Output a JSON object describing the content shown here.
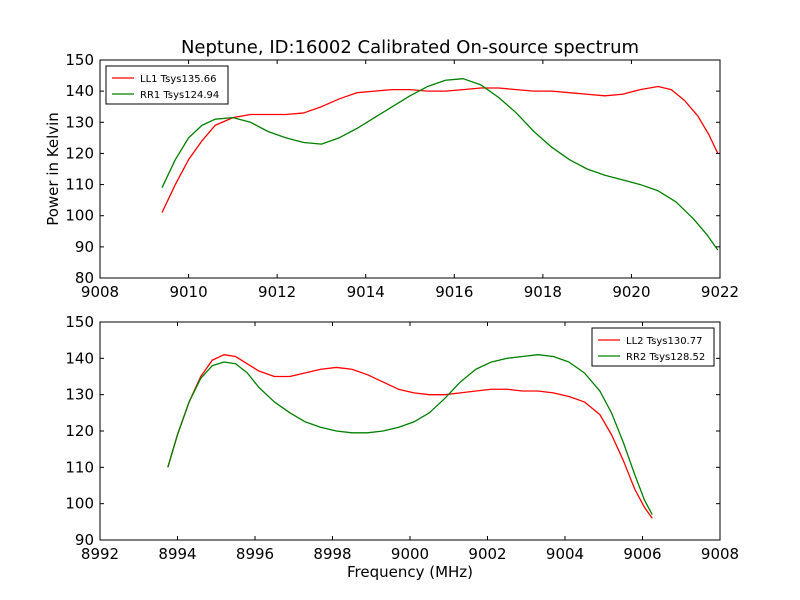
{
  "figure": {
    "title": "Neptune, ID:16002 Calibrated On-source spectrum",
    "ylabel": "Power in Kelvin",
    "xlabel": "Frequency (MHz)"
  },
  "chart_data": [
    {
      "type": "line",
      "xlim": [
        9008,
        9022
      ],
      "ylim": [
        80,
        150
      ],
      "xticks": [
        9008,
        9010,
        9012,
        9014,
        9016,
        9018,
        9020,
        9022
      ],
      "yticks": [
        80,
        90,
        100,
        110,
        120,
        130,
        140,
        150
      ],
      "legend_position": "top-left",
      "series": [
        {
          "name": "LL1 Tsys135.66",
          "color": "#ff0000",
          "x": [
            9009.4,
            9009.7,
            9010.0,
            9010.3,
            9010.6,
            9011.0,
            9011.4,
            9011.8,
            9012.2,
            9012.6,
            9013.0,
            9013.4,
            9013.8,
            9014.2,
            9014.6,
            9015.0,
            9015.4,
            9015.8,
            9016.2,
            9016.6,
            9017.0,
            9017.4,
            9017.8,
            9018.2,
            9018.6,
            9019.0,
            9019.4,
            9019.8,
            9020.2,
            9020.6,
            9020.9,
            9021.2,
            9021.5,
            9021.75,
            9021.95
          ],
          "y": [
            101,
            110,
            118,
            124,
            129,
            131.5,
            132.5,
            132.5,
            132.5,
            133,
            135,
            137.5,
            139.5,
            140,
            140.5,
            140.5,
            140,
            140,
            140.5,
            141,
            141,
            140.5,
            140,
            140,
            139.5,
            139,
            138.5,
            139,
            140.5,
            141.5,
            140.5,
            137,
            132,
            126,
            120
          ]
        },
        {
          "name": "RR1 Tsys124.94",
          "color": "#008000",
          "x": [
            9009.4,
            9009.7,
            9010.0,
            9010.3,
            9010.6,
            9011.0,
            9011.4,
            9011.8,
            9012.2,
            9012.6,
            9013.0,
            9013.4,
            9013.8,
            9014.2,
            9014.6,
            9015.0,
            9015.4,
            9015.8,
            9016.2,
            9016.6,
            9017.0,
            9017.4,
            9017.8,
            9018.2,
            9018.6,
            9019.0,
            9019.4,
            9019.8,
            9020.2,
            9020.6,
            9021.0,
            9021.4,
            9021.7,
            9021.95
          ],
          "y": [
            109,
            118,
            125,
            129,
            131,
            131.5,
            130,
            127,
            125,
            123.5,
            123,
            125,
            128,
            131.5,
            135,
            138.5,
            141.5,
            143.5,
            144,
            142,
            138,
            133,
            127,
            122,
            118,
            115,
            113,
            111.5,
            110,
            108,
            104.5,
            99,
            94,
            89
          ]
        }
      ]
    },
    {
      "type": "line",
      "xlim": [
        8992,
        9008
      ],
      "ylim": [
        90,
        150
      ],
      "xticks": [
        8992,
        8994,
        8996,
        8998,
        9000,
        9002,
        9004,
        9006,
        9008
      ],
      "yticks": [
        90,
        100,
        110,
        120,
        130,
        140,
        150
      ],
      "legend_position": "top-right",
      "series": [
        {
          "name": "LL2 Tsys130.77",
          "color": "#ff0000",
          "x": [
            8993.75,
            8994.0,
            8994.3,
            8994.6,
            8994.9,
            8995.2,
            8995.5,
            8995.8,
            8996.1,
            8996.5,
            8996.9,
            8997.3,
            8997.7,
            8998.1,
            8998.5,
            8998.9,
            8999.3,
            8999.7,
            9000.1,
            9000.5,
            9000.9,
            9001.3,
            9001.7,
            9002.1,
            9002.5,
            9002.9,
            9003.3,
            9003.7,
            9004.1,
            9004.5,
            9004.9,
            9005.2,
            9005.5,
            9005.8,
            9006.05,
            9006.25
          ],
          "y": [
            110,
            119,
            128,
            135,
            139.5,
            141,
            140.5,
            138.5,
            136.5,
            135,
            135,
            136,
            137,
            137.5,
            137,
            135.5,
            133.5,
            131.5,
            130.5,
            130,
            130,
            130.5,
            131,
            131.5,
            131.5,
            131,
            131,
            130.5,
            129.5,
            128,
            124.5,
            119,
            112,
            104,
            99,
            96
          ]
        },
        {
          "name": "RR2 Tsys128.52",
          "color": "#008000",
          "x": [
            8993.75,
            8994.0,
            8994.3,
            8994.6,
            8994.9,
            8995.2,
            8995.5,
            8995.8,
            8996.1,
            8996.5,
            8996.9,
            8997.3,
            8997.7,
            8998.1,
            8998.5,
            8998.9,
            8999.3,
            8999.7,
            9000.1,
            9000.5,
            9000.9,
            9001.3,
            9001.7,
            9002.1,
            9002.5,
            9002.9,
            9003.3,
            9003.7,
            9004.1,
            9004.5,
            9004.9,
            9005.2,
            9005.5,
            9005.8,
            9006.05,
            9006.25
          ],
          "y": [
            110,
            119,
            128,
            134.5,
            138,
            139,
            138.5,
            136,
            132,
            128,
            125,
            122.5,
            121,
            120,
            119.5,
            119.5,
            120,
            121,
            122.5,
            125,
            129,
            133.5,
            137,
            139,
            140,
            140.5,
            141,
            140.5,
            139,
            136,
            131,
            125,
            117,
            108,
            101,
            97
          ]
        }
      ]
    }
  ]
}
